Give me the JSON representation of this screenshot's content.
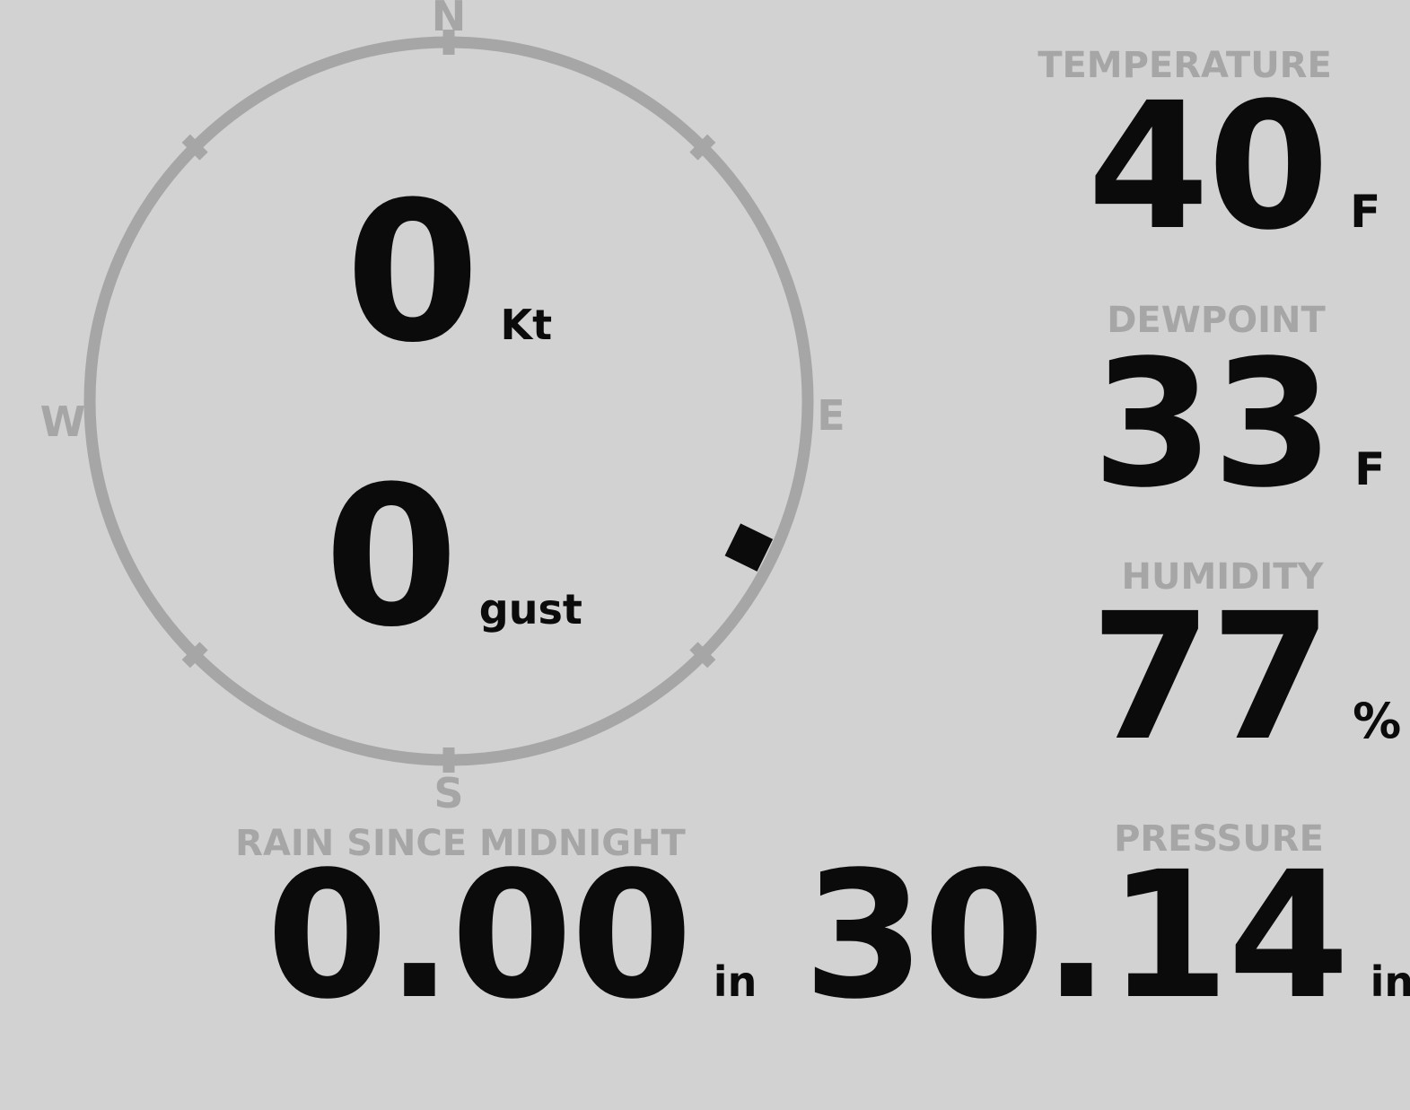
{
  "theme": {
    "background": "#d2d2d2",
    "muted": "#a6a6a6",
    "value": "#0b0b0b"
  },
  "compass": {
    "cardinals": {
      "north": "N",
      "east": "E",
      "south": "S",
      "west": "W"
    },
    "wind_speed": {
      "value": "0",
      "unit": "Kt"
    },
    "wind_gust": {
      "value": "0",
      "unit": "gust"
    },
    "wind_direction_deg": 116
  },
  "metrics": {
    "temperature": {
      "label": "TEMPERATURE",
      "value": "40",
      "unit": "F"
    },
    "dewpoint": {
      "label": "DEWPOINT",
      "value": "33",
      "unit": "F"
    },
    "humidity": {
      "label": "HUMIDITY",
      "value": "77",
      "unit": "%"
    },
    "rain": {
      "label": "RAIN SINCE MIDNIGHT",
      "value": "0.00",
      "unit": "in"
    },
    "pressure": {
      "label": "PRESSURE",
      "value": "30.14",
      "unit": "in"
    }
  }
}
